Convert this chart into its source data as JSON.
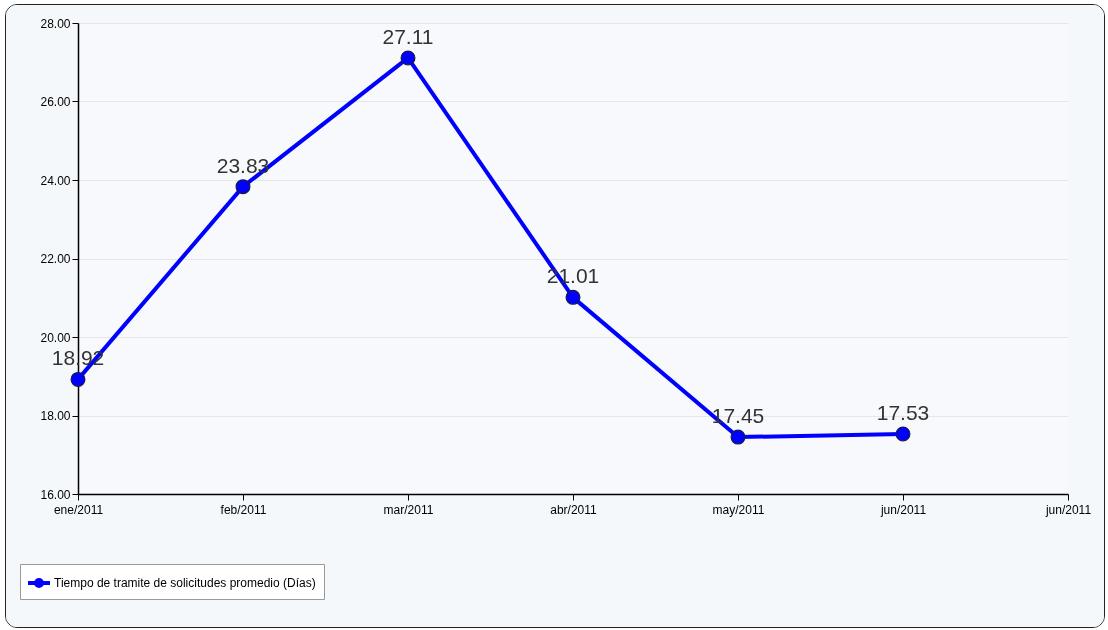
{
  "chart_data": {
    "type": "line",
    "categories": [
      "ene/2011",
      "feb/2011",
      "mar/2011",
      "abr/2011",
      "may/2011",
      "jun/2011",
      "jun/2011"
    ],
    "series": [
      {
        "name": "Tiempo de tramite de solicitudes promedio (Días)",
        "color": "#0000ff",
        "values": [
          18.92,
          23.83,
          27.11,
          21.01,
          17.45,
          17.53,
          null
        ]
      }
    ],
    "ylim": [
      16,
      28
    ],
    "yticks": [
      {
        "value": 16,
        "label": "16.00"
      },
      {
        "value": 18,
        "label": "18.00"
      },
      {
        "value": 20,
        "label": "20.00"
      },
      {
        "value": 22,
        "label": "22.00"
      },
      {
        "value": 24,
        "label": "24.00"
      },
      {
        "value": 26,
        "label": "26.00"
      },
      {
        "value": 28,
        "label": "28.00"
      }
    ],
    "grid": "y",
    "legend": "bottom",
    "marker": "circle",
    "line_style": "solid",
    "data_labels": true
  }
}
